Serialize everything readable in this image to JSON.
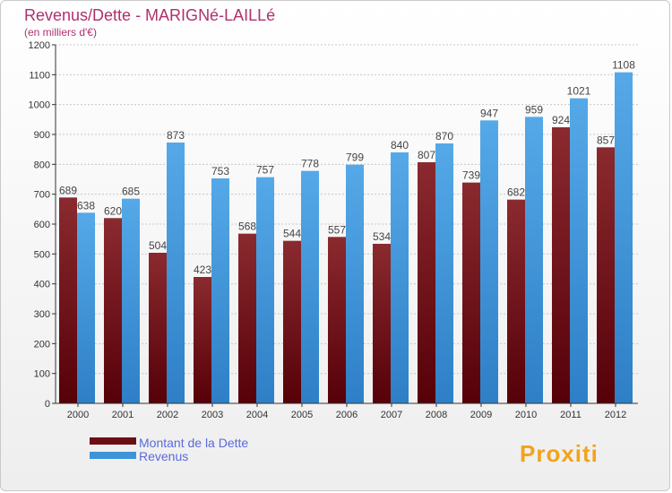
{
  "header": {
    "title": "Revenus/Dette - MARIGNé-LAILLé",
    "subtitle": "(en milliers d'€)"
  },
  "colors": {
    "title": "#b0306e",
    "dette": "#6b0f14",
    "revenus": "#3f94d8",
    "legend_text": "#5b6bd8"
  },
  "logo": {
    "text": "Proxiti"
  },
  "chart_data": {
    "type": "bar",
    "title": "Revenus/Dette - MARIGNé-LAILLé",
    "ylabel": "(en milliers d'€)",
    "categories": [
      "2000",
      "2001",
      "2002",
      "2003",
      "2004",
      "2005",
      "2006",
      "2007",
      "2008",
      "2009",
      "2010",
      "2011",
      "2012"
    ],
    "series": [
      {
        "name": "Montant de la Dette",
        "values": [
          689,
          620,
          504,
          423,
          568,
          544,
          557,
          534,
          807,
          739,
          682,
          924,
          857
        ]
      },
      {
        "name": "Revenus",
        "values": [
          638,
          685,
          873,
          753,
          757,
          778,
          799,
          840,
          870,
          947,
          959,
          1021,
          1108
        ]
      }
    ],
    "ylim": [
      0,
      1200
    ],
    "yticks": [
      0,
      100,
      200,
      300,
      400,
      500,
      600,
      700,
      800,
      900,
      1000,
      1100,
      1200
    ],
    "grid": true,
    "legend_position": "bottom-left"
  }
}
